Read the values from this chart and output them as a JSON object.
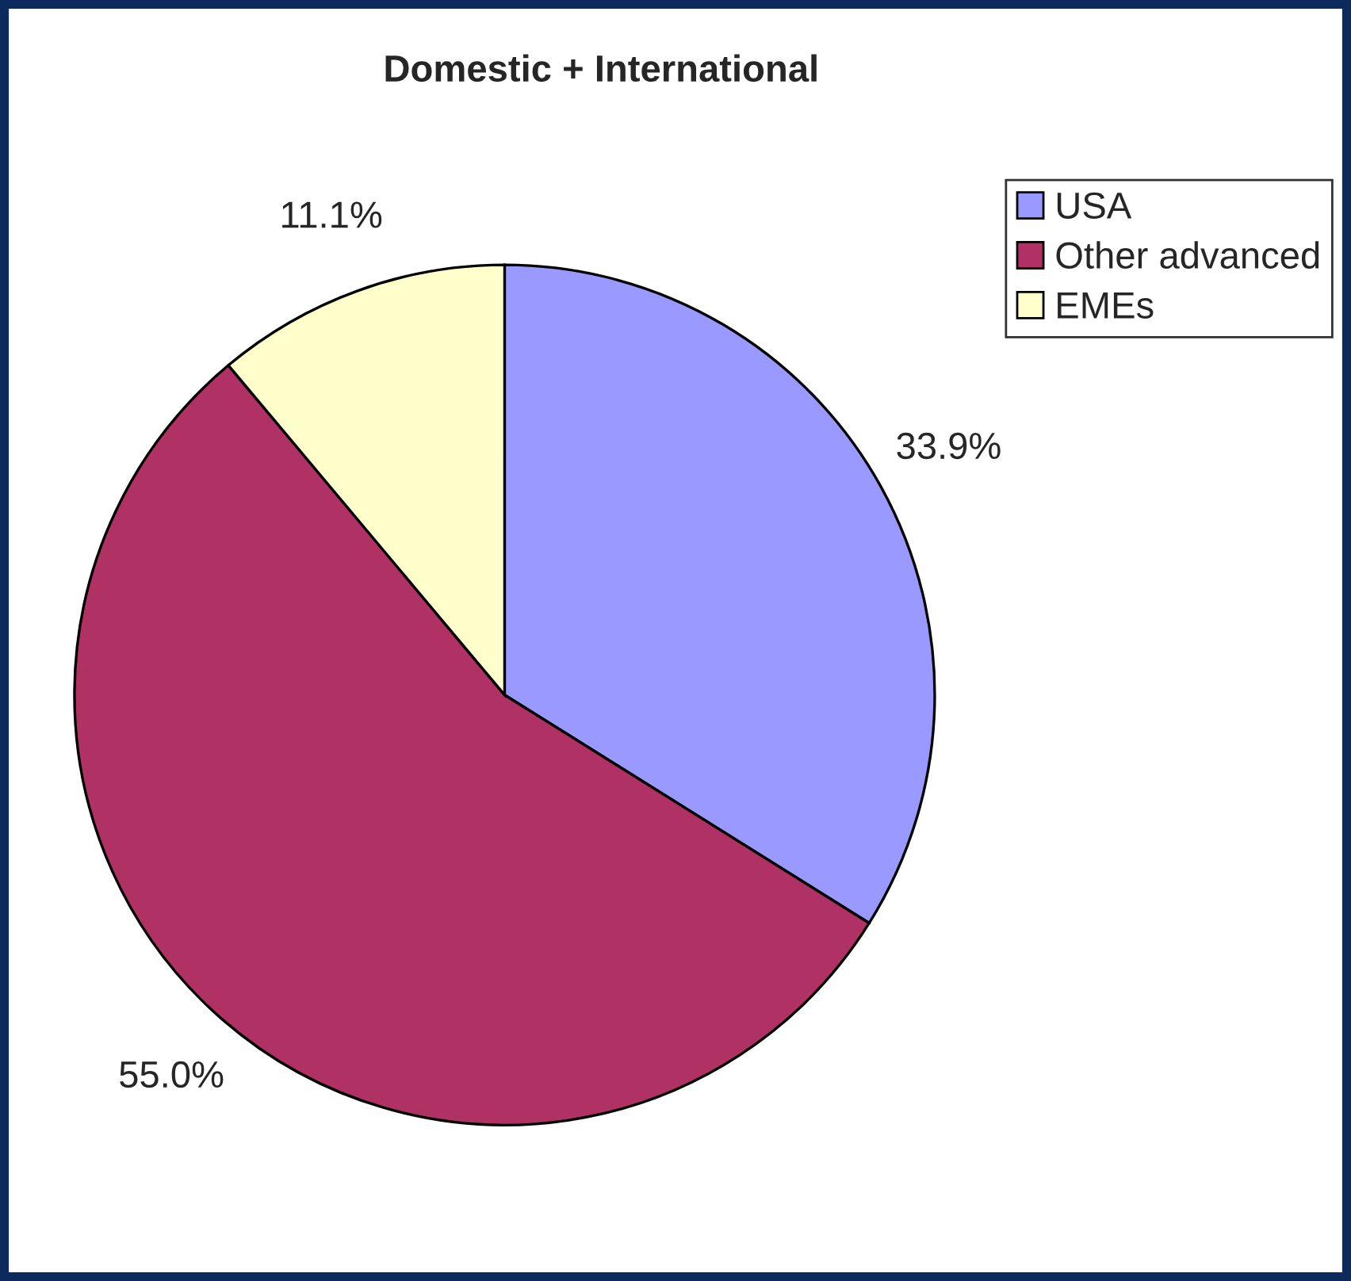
{
  "chart_data": {
    "type": "pie",
    "title": "Domestic + International",
    "categories": [
      "USA",
      "Other advanced",
      "EMEs"
    ],
    "values": [
      33.9,
      55.0,
      11.1
    ],
    "value_labels": [
      "33.9%",
      "55.0%",
      "11.1%"
    ],
    "colors": [
      "#9999ff",
      "#b03264",
      "#ffffcc"
    ],
    "legend": "top right"
  }
}
